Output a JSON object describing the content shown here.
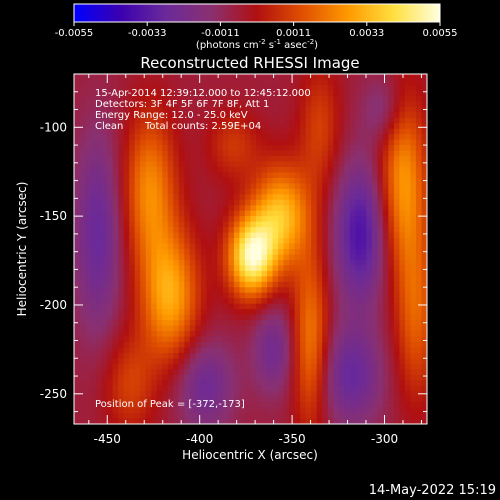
{
  "chart_data": {
    "type": "heatmap",
    "title": "Reconstructed RHESSI Image",
    "colorbar": {
      "ticks": [
        "-0.0055",
        "-0.0033",
        "-0.0011",
        "0.0011",
        "0.0033",
        "0.0055"
      ],
      "range": [
        -0.0055,
        0.0055
      ],
      "unit_main": "(photons cm",
      "unit_exp1": "-2",
      "unit_mid": " s",
      "unit_exp2": "-1",
      "unit_tail": " asec",
      "unit_exp3": "-2",
      "unit_close": ")",
      "colors": [
        "#0000ff",
        "#3a00b0",
        "#6a2a9a",
        "#8a3070",
        "#b01010",
        "#e05000",
        "#ff9a00",
        "#ffe040",
        "#ffffe0"
      ]
    },
    "xlabel": "Heliocentric X (arcsec)",
    "ylabel": "Heliocentric Y (arcsec)",
    "xlim": [
      -468,
      -277
    ],
    "ylim": [
      -267,
      -70
    ],
    "xticks": [
      "-450",
      "-400",
      "-350",
      "-300"
    ],
    "yticks": [
      "-100",
      "-150",
      "-200",
      "-250"
    ],
    "xtick_values": [
      -450,
      -400,
      -350,
      -300
    ],
    "ytick_values": [
      -100,
      -150,
      -200,
      -250
    ],
    "annotations": {
      "line1": "15-Apr-2014 12:39:12.000 to 12:45:12.000",
      "line2": "Detectors: 3F 4F 5F 6F 7F 8F, Att 1",
      "line3": "Energy Range: 12.0 - 25.0 keV",
      "line4a": "Clean",
      "line4b": "Total counts: 2.59E+04",
      "peak": "Position of Peak = [-372,-173]"
    },
    "peak": [
      -372,
      -173
    ],
    "sources": [
      {
        "x": -372,
        "y": -173,
        "sx": 9,
        "sy": 16,
        "amp": 0.0055
      },
      {
        "x": -356,
        "y": -150,
        "sx": 11,
        "sy": 20,
        "amp": 0.004
      },
      {
        "x": -416,
        "y": -195,
        "sx": 11,
        "sy": 26,
        "amp": 0.0036
      },
      {
        "x": -427,
        "y": -135,
        "sx": 10,
        "sy": 30,
        "amp": 0.003
      },
      {
        "x": -438,
        "y": -245,
        "sx": 10,
        "sy": 20,
        "amp": 0.0016
      },
      {
        "x": -382,
        "y": -110,
        "sx": 10,
        "sy": 14,
        "amp": 0.0014
      },
      {
        "x": -340,
        "y": -220,
        "sx": 7,
        "sy": 35,
        "amp": 0.0028
      },
      {
        "x": -335,
        "y": -100,
        "sx": 8,
        "sy": 25,
        "amp": 0.0016
      },
      {
        "x": -290,
        "y": -130,
        "sx": 9,
        "sy": 35,
        "amp": 0.0032
      },
      {
        "x": -283,
        "y": -205,
        "sx": 8,
        "sy": 35,
        "amp": 0.0022
      },
      {
        "x": -455,
        "y": -160,
        "sx": 9,
        "sy": 40,
        "amp": -0.0022
      },
      {
        "x": -397,
        "y": -245,
        "sx": 11,
        "sy": 18,
        "amp": -0.002
      },
      {
        "x": -313,
        "y": -160,
        "sx": 10,
        "sy": 28,
        "amp": -0.003
      },
      {
        "x": -318,
        "y": -240,
        "sx": 12,
        "sy": 20,
        "amp": -0.0022
      },
      {
        "x": -360,
        "y": -225,
        "sx": 8,
        "sy": 18,
        "amp": -0.0018
      },
      {
        "x": -300,
        "y": -90,
        "sx": 8,
        "sy": 14,
        "amp": -0.0014
      }
    ]
  },
  "footer": {
    "timestamp": "14-May-2022 15:19"
  }
}
